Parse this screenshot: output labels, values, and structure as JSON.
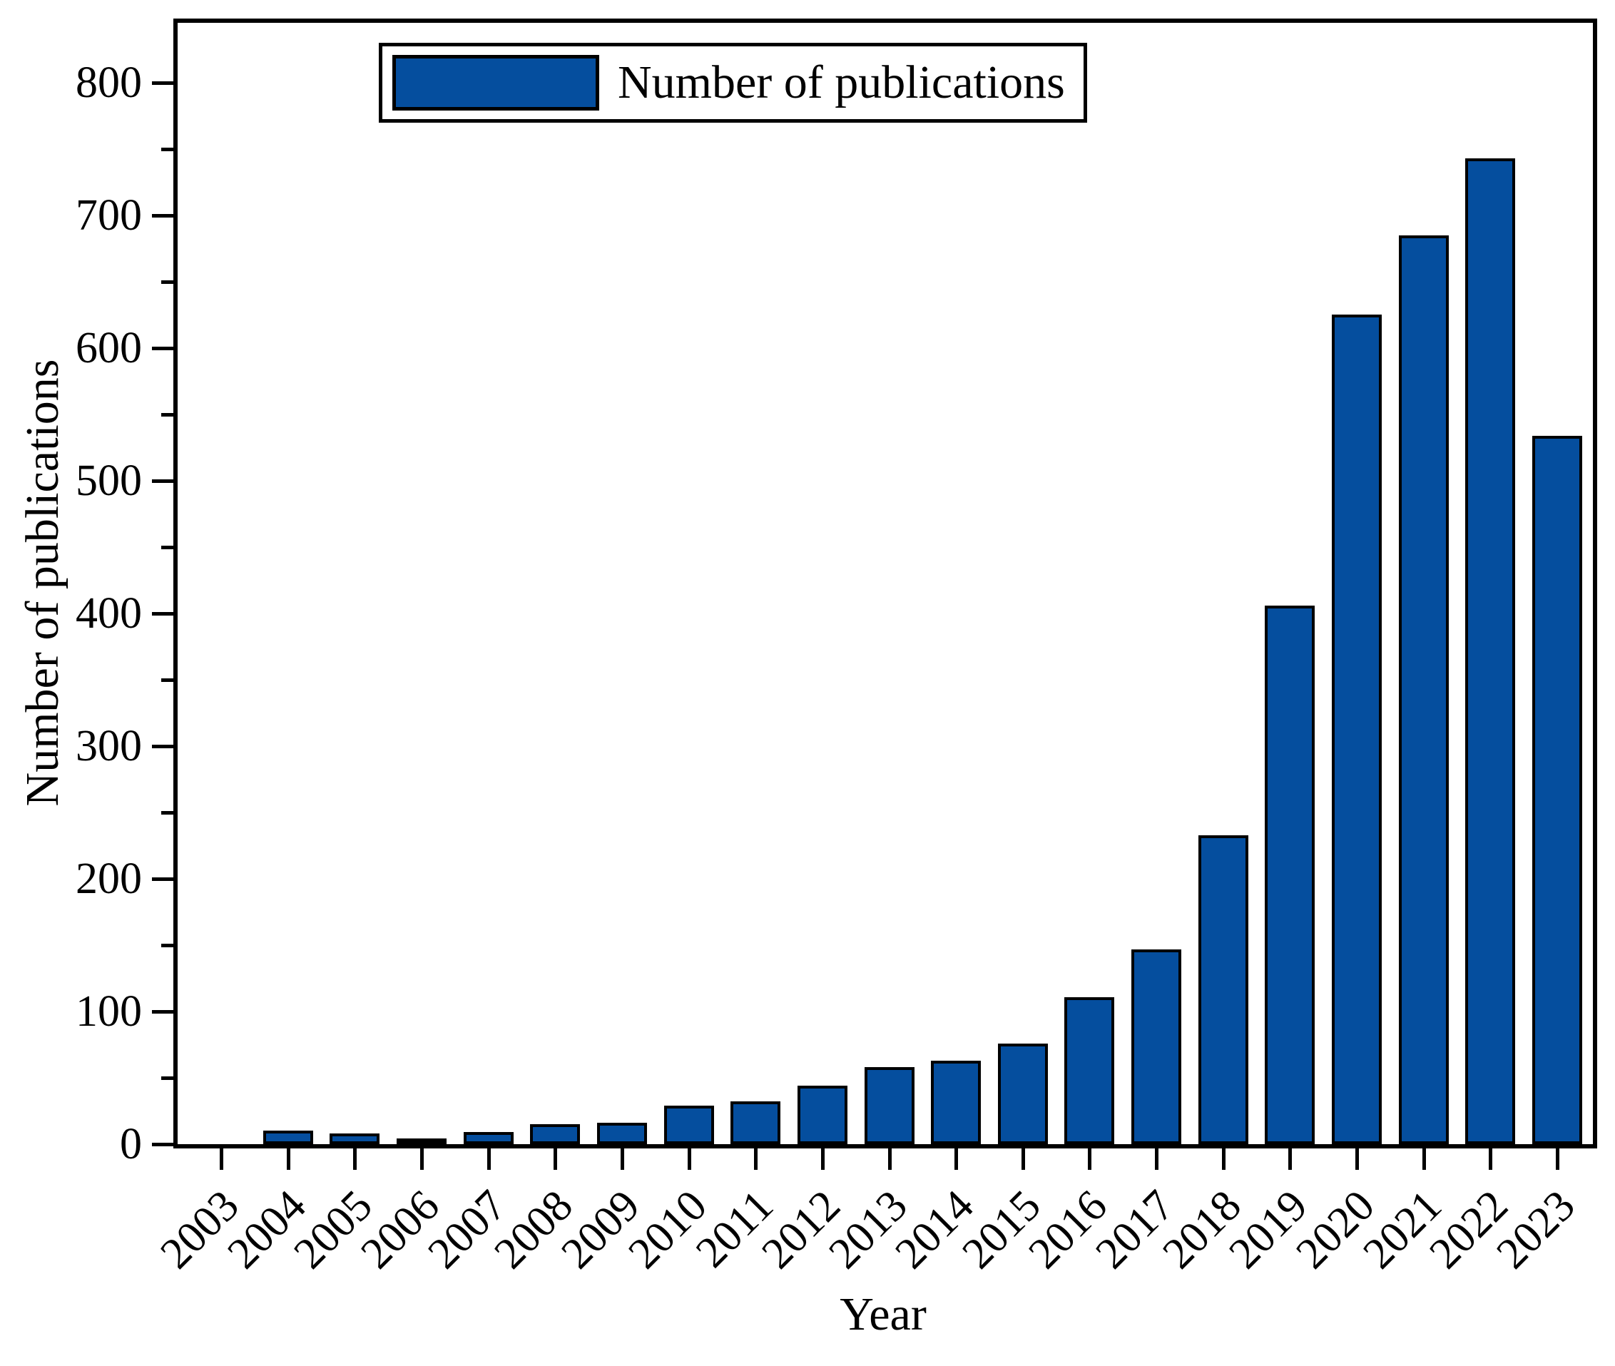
{
  "chart_data": {
    "type": "bar",
    "title": "",
    "categories": [
      "2003",
      "2004",
      "2005",
      "2006",
      "2007",
      "2008",
      "2009",
      "2010",
      "2011",
      "2012",
      "2013",
      "2014",
      "2015",
      "2016",
      "2017",
      "2018",
      "2019",
      "2020",
      "2021",
      "2022",
      "2023"
    ],
    "values": [
      0,
      10,
      8,
      4,
      9,
      15,
      16,
      29,
      32,
      44,
      58,
      63,
      76,
      111,
      147,
      233,
      406,
      625,
      685,
      743,
      534
    ],
    "xlabel": "Year",
    "ylabel": "Number of publications",
    "legend": [
      "Number of publications"
    ],
    "legend_position": "top-left",
    "ylim": [
      0,
      845
    ],
    "yticks_major": [
      0,
      100,
      200,
      300,
      400,
      500,
      600,
      700,
      800
    ],
    "ytick_minor_step": 50,
    "grid": false,
    "bar_color": "#054E9E",
    "bar_border_color": "#000000",
    "axis_color": "#000000"
  }
}
